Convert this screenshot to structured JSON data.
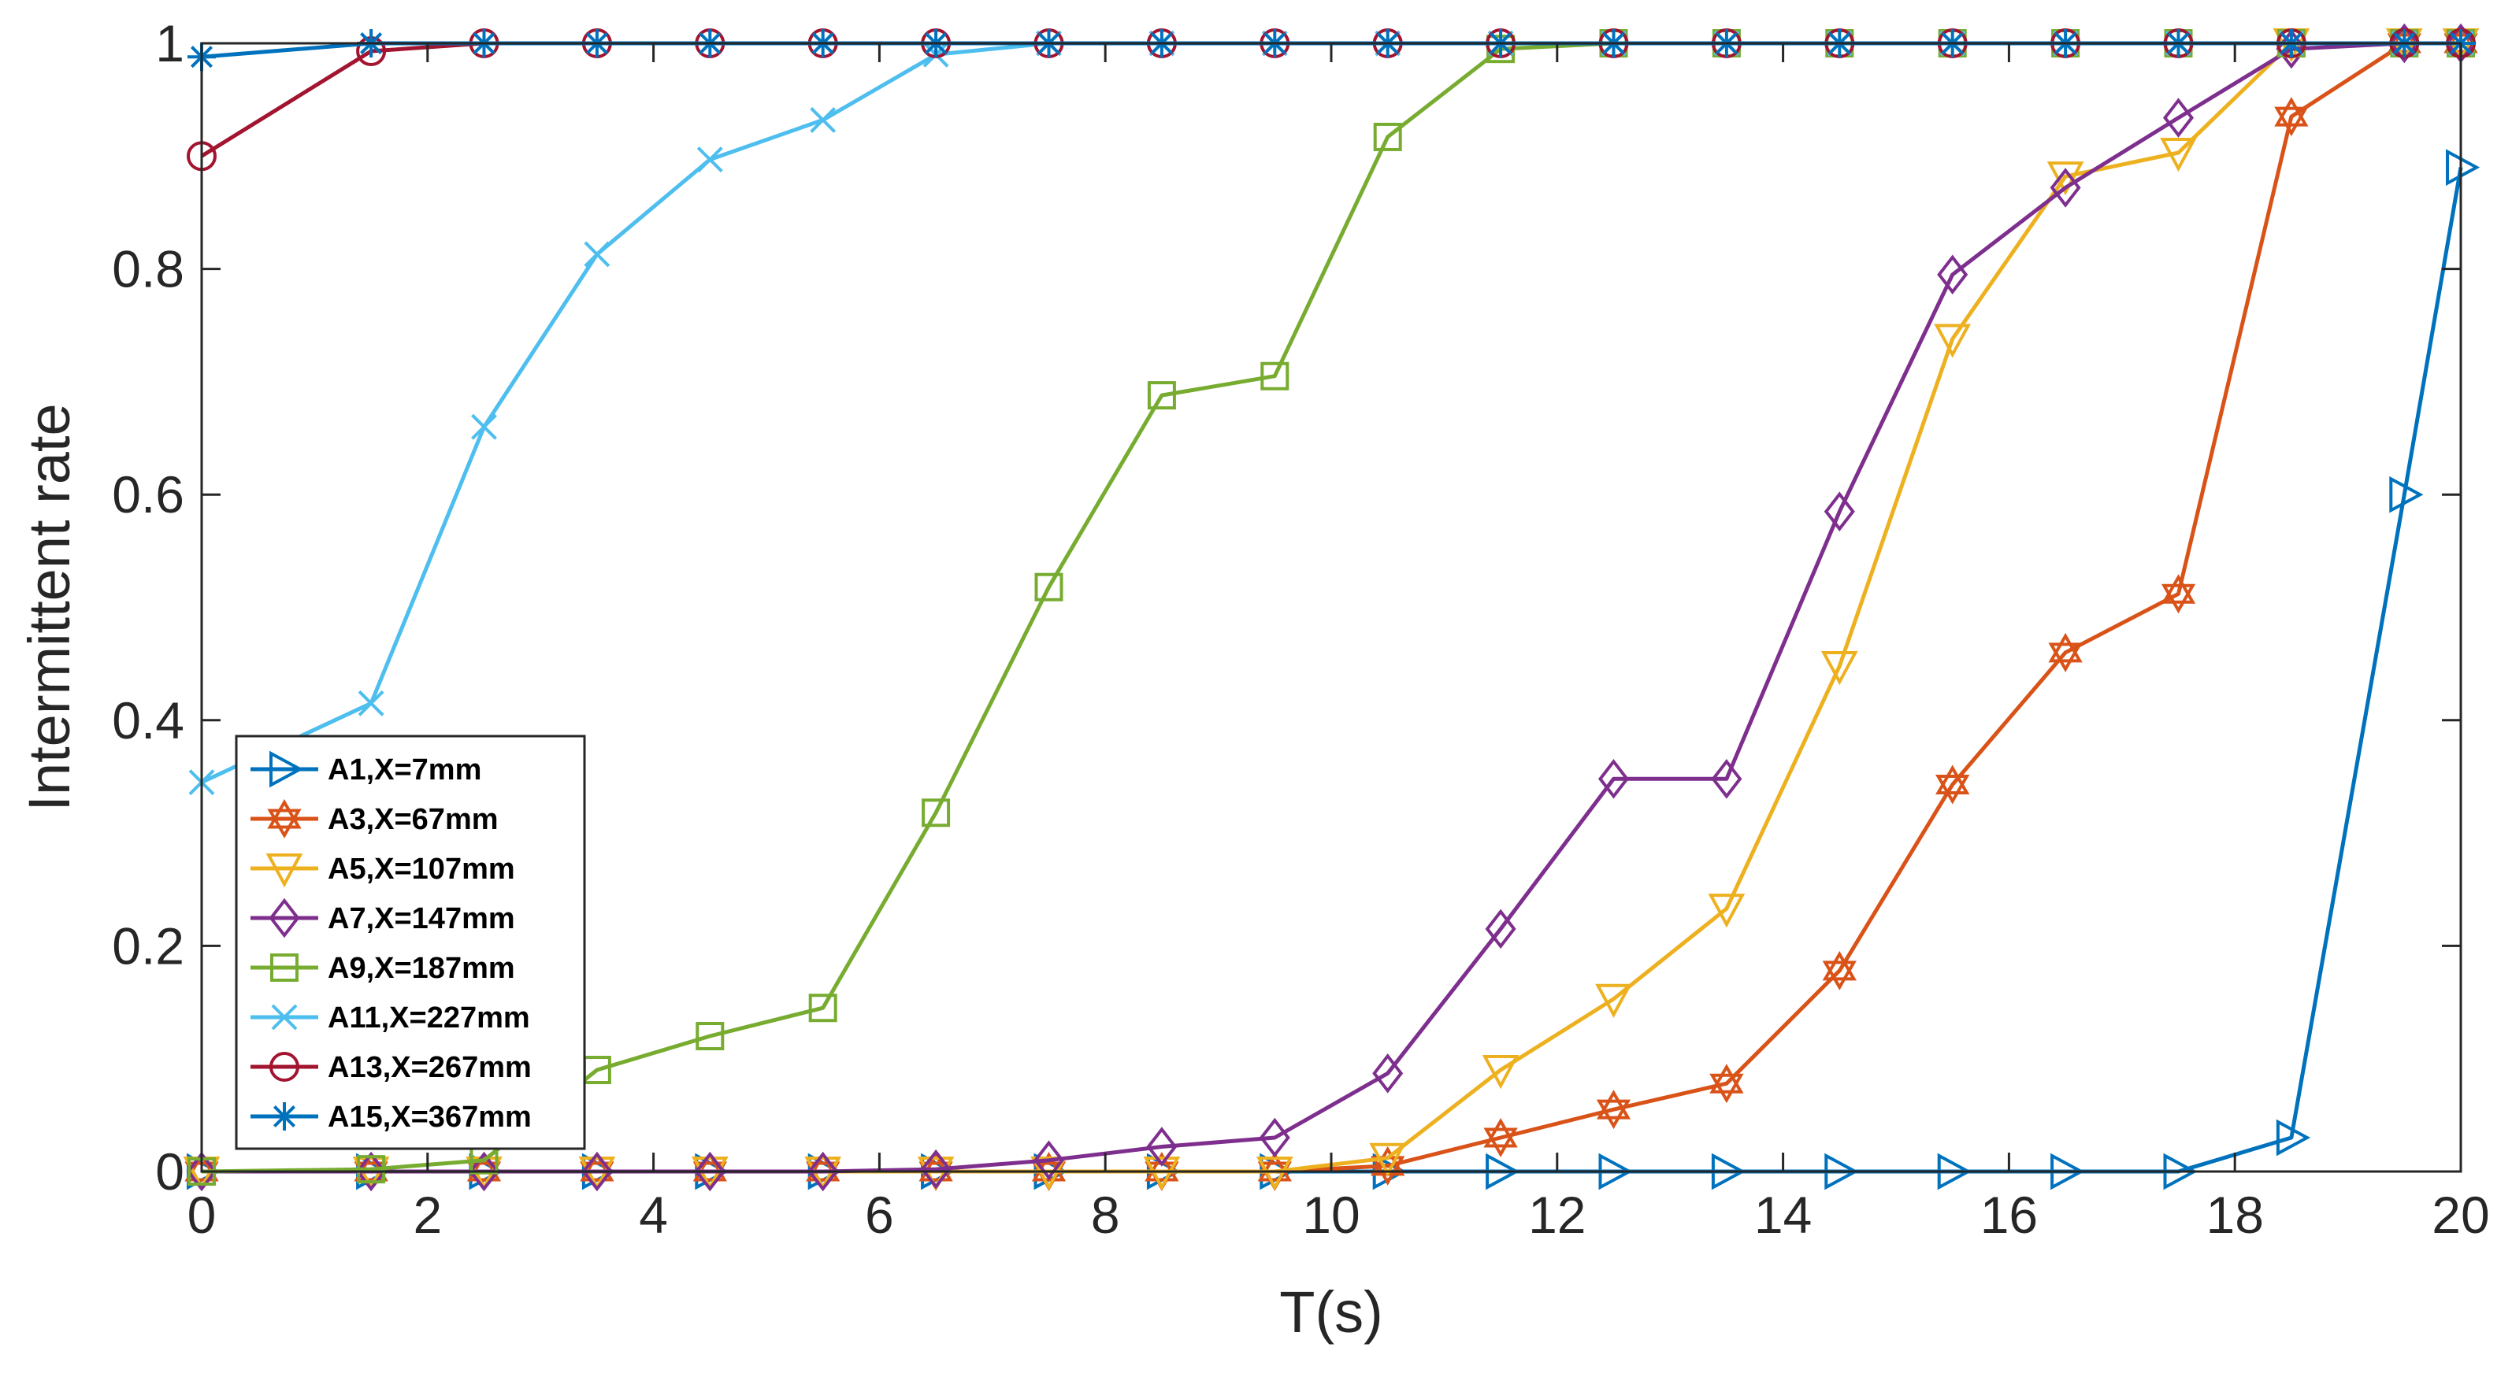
{
  "chart_data": {
    "type": "line",
    "xlabel": "T(s)",
    "ylabel": "Intermittent rate",
    "xlim": [
      0,
      20
    ],
    "ylim": [
      0,
      1
    ],
    "xticks": [
      0,
      2,
      4,
      6,
      8,
      10,
      12,
      14,
      16,
      18,
      20
    ],
    "yticks": [
      0,
      0.2,
      0.4,
      0.6,
      0.8,
      1
    ],
    "xtick_labels": [
      "0",
      "2",
      "4",
      "6",
      "8",
      "10",
      "12",
      "14",
      "16",
      "18",
      "20"
    ],
    "ytick_labels": [
      "0",
      "0.2",
      "0.4",
      "0.6",
      "0.8",
      "1"
    ],
    "grid": false,
    "legend_position": "lower-left",
    "x": [
      0,
      1.5,
      2.5,
      3.5,
      4.5,
      5.5,
      6.5,
      7.5,
      8.5,
      9.5,
      10.5,
      11.5,
      12.5,
      13.5,
      14.5,
      15.5,
      16.5,
      17.5,
      18.5,
      19.5,
      20
    ],
    "series": [
      {
        "name": "A1,X=7mm",
        "color": "#0072BD",
        "marker": "triangle-right",
        "values": [
          0,
          0,
          0,
          0,
          0,
          0,
          0,
          0,
          0,
          0,
          0,
          0,
          0,
          0,
          0,
          0,
          0,
          0,
          0.03,
          0.6,
          0.89
        ]
      },
      {
        "name": "A3,X=67mm",
        "color": "#D95319",
        "marker": "hexagram",
        "values": [
          0,
          0,
          0,
          0,
          0,
          0,
          0,
          0,
          0,
          0,
          0.005,
          0.03,
          0.055,
          0.078,
          0.178,
          0.343,
          0.46,
          0.512,
          0.935,
          1,
          1
        ]
      },
      {
        "name": "A5,X=107mm",
        "color": "#EDB120",
        "marker": "triangle-down",
        "values": [
          0,
          0,
          0,
          0,
          0,
          0,
          0,
          0,
          0,
          0,
          0.012,
          0.09,
          0.153,
          0.233,
          0.448,
          0.738,
          0.882,
          0.903,
          1,
          1,
          1
        ]
      },
      {
        "name": "A7,X=147mm",
        "color": "#7E2F8E",
        "marker": "diamond",
        "values": [
          0,
          0,
          0,
          0,
          0,
          0,
          0.002,
          0.01,
          0.022,
          0.03,
          0.087,
          0.215,
          0.348,
          0.348,
          0.585,
          0.795,
          0.872,
          0.934,
          0.995,
          1,
          1
        ]
      },
      {
        "name": "A9,X=187mm",
        "color": "#77AC30",
        "marker": "square",
        "values": [
          0,
          0.002,
          0.01,
          0.09,
          0.12,
          0.145,
          0.318,
          0.518,
          0.688,
          0.705,
          0.917,
          0.995,
          1,
          1,
          1,
          1,
          1,
          1,
          1,
          1,
          1
        ]
      },
      {
        "name": "A11,X=227mm",
        "color": "#4DBEEE",
        "marker": "x",
        "values": [
          0.345,
          0.415,
          0.66,
          0.813,
          0.897,
          0.932,
          0.99,
          1,
          1,
          1,
          1,
          1,
          1,
          1,
          1,
          1,
          1,
          1,
          1,
          1,
          1
        ]
      },
      {
        "name": "A13,X=267mm",
        "color": "#A2142F",
        "marker": "circle",
        "values": [
          0.9,
          0.993,
          1,
          1,
          1,
          1,
          1,
          1,
          1,
          1,
          1,
          1,
          1,
          1,
          1,
          1,
          1,
          1,
          1,
          1,
          1
        ]
      },
      {
        "name": "A15,X=367mm",
        "color": "#0072BD",
        "marker": "asterisk",
        "values": [
          0.988,
          1,
          1,
          1,
          1,
          1,
          1,
          1,
          1,
          1,
          1,
          1,
          1,
          1,
          1,
          1,
          1,
          1,
          1,
          1,
          1
        ]
      }
    ]
  }
}
